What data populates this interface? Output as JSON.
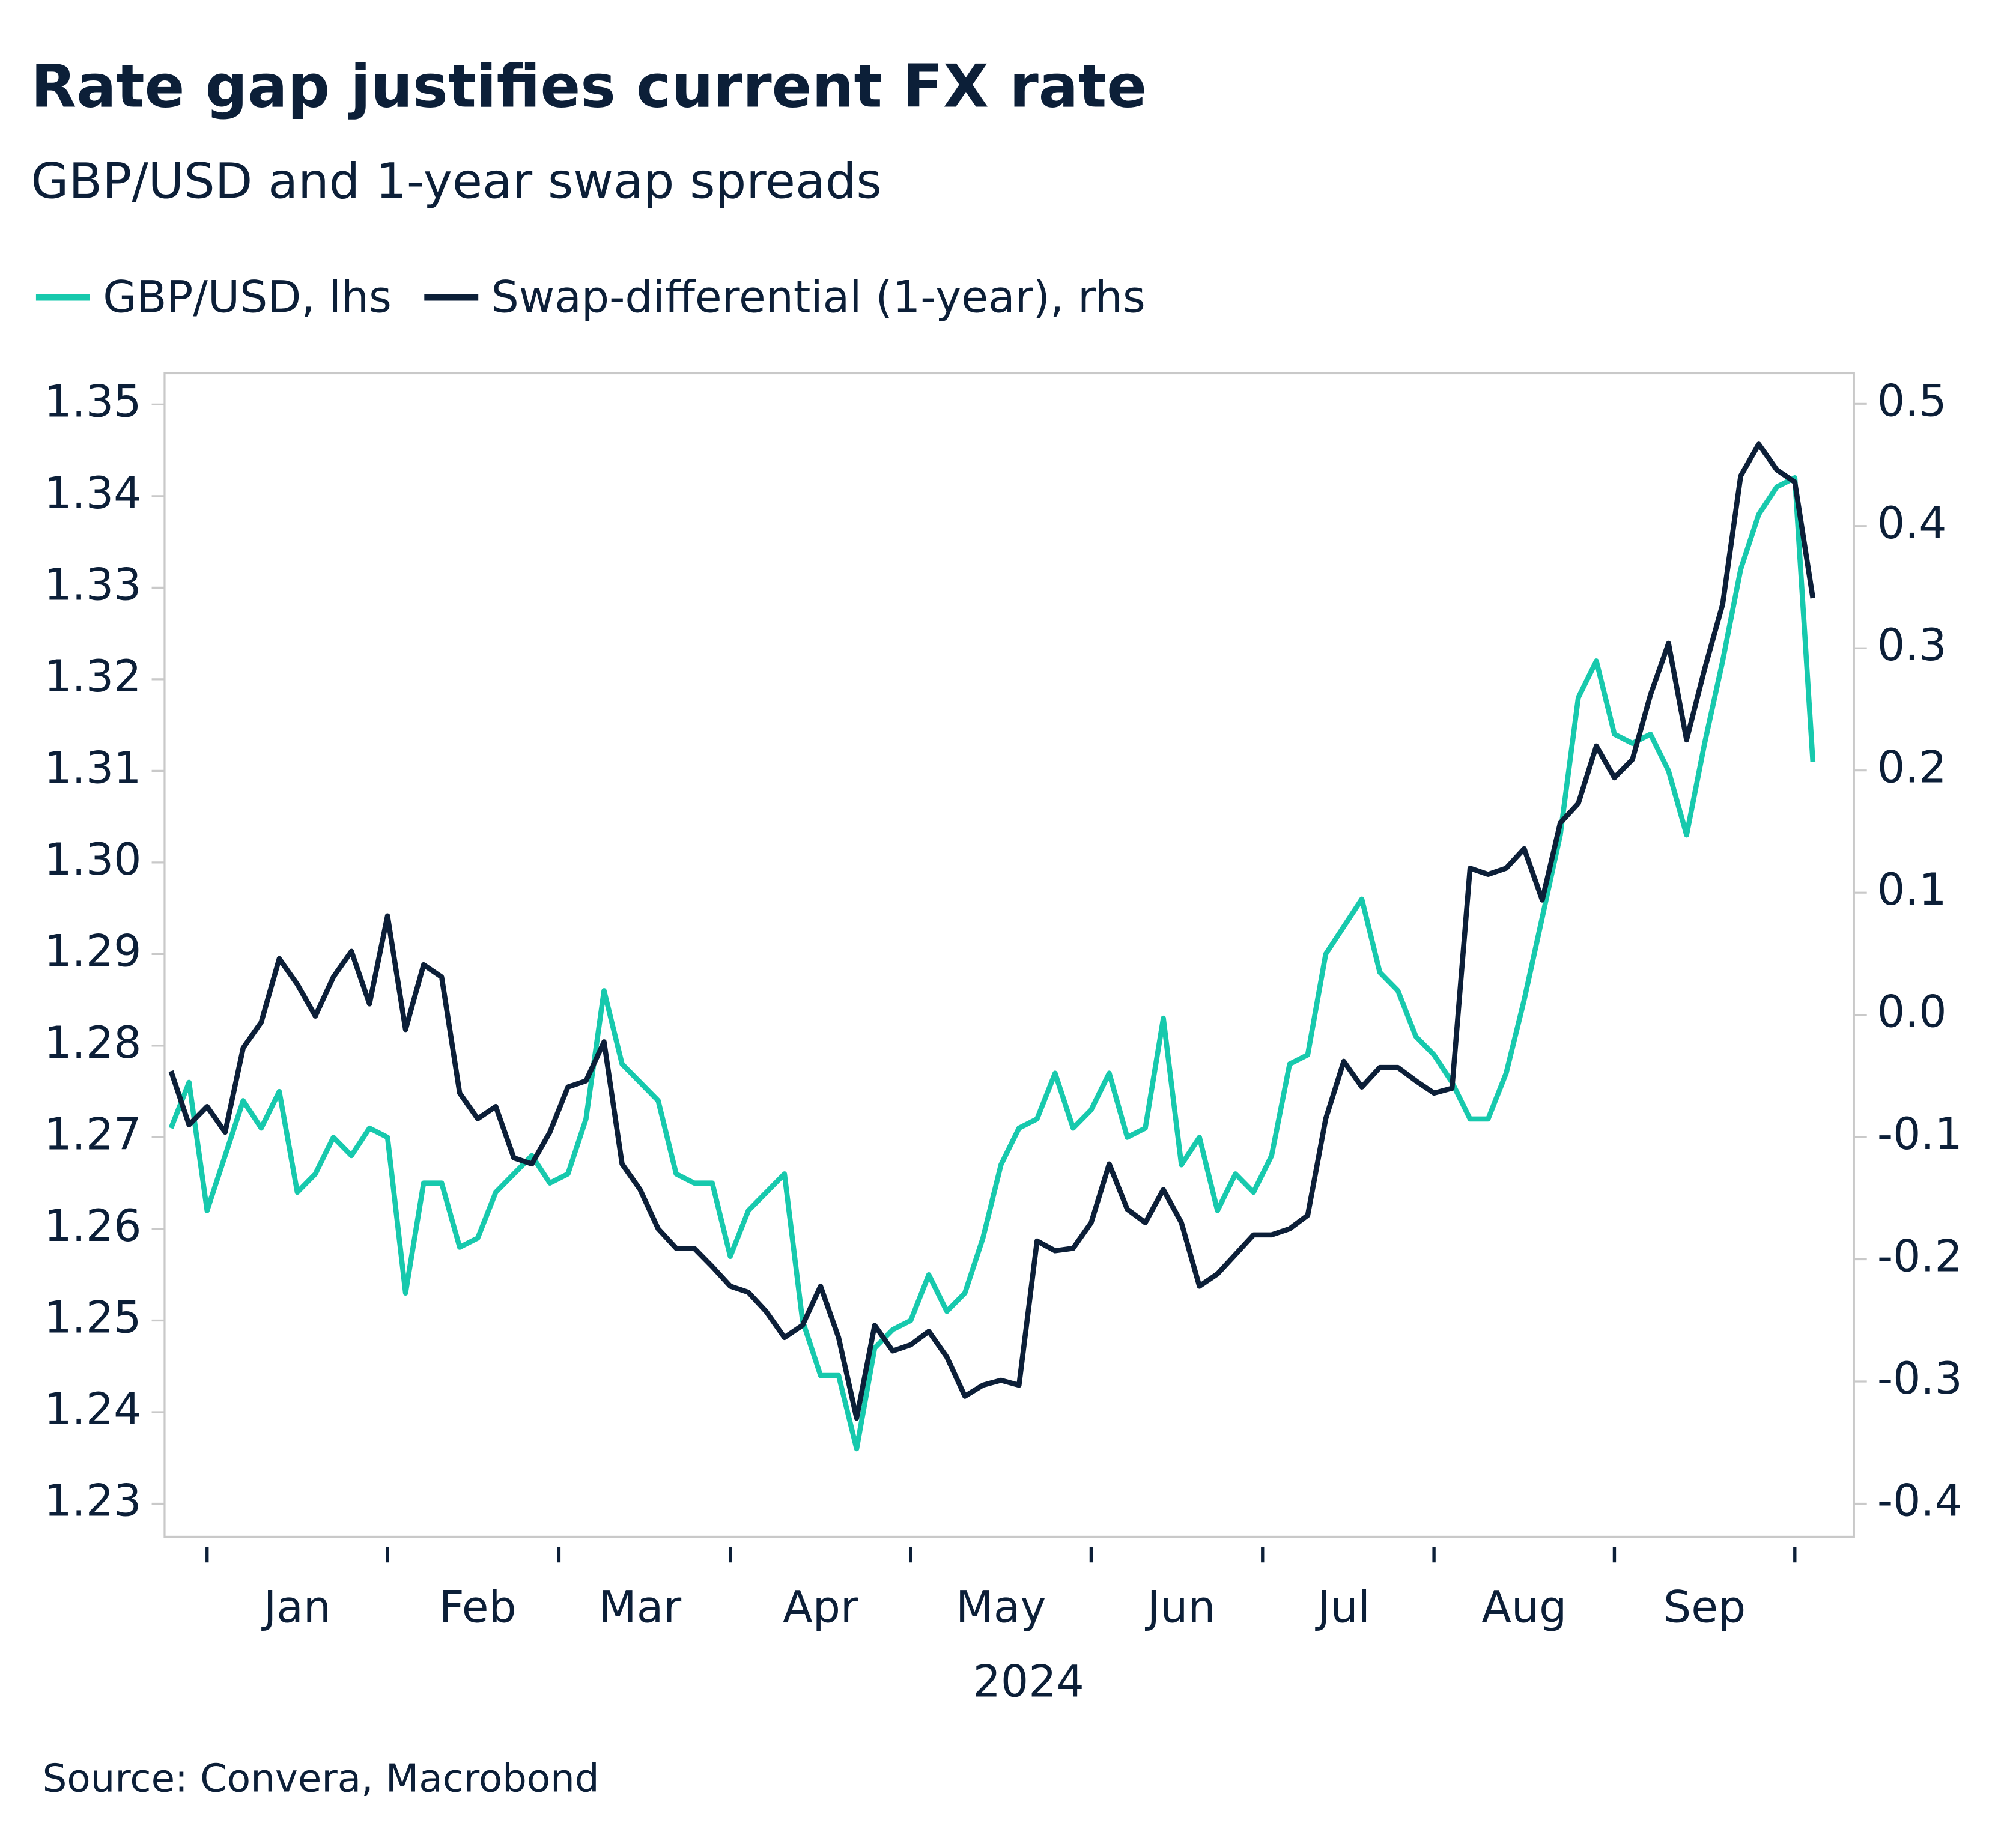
{
  "chart_data": {
    "type": "line",
    "title": "Rate gap justifies current FX rate",
    "subtitle": "GBP/USD and 1-year swap spreads",
    "xlabel": "2024",
    "source": "Source: Convera, Macrobond",
    "categories": [
      null,
      null,
      null,
      null,
      null,
      null,
      null,
      "Jan",
      null,
      null,
      null,
      null,
      null,
      null,
      null,
      null,
      null,
      "Feb",
      null,
      null,
      null,
      null,
      null,
      null,
      null,
      null,
      "Mar",
      null,
      null,
      null,
      null,
      null,
      null,
      null,
      null,
      null,
      "Apr",
      null,
      null,
      null,
      null,
      null,
      null,
      null,
      null,
      null,
      "May",
      null,
      null,
      null,
      null,
      null,
      null,
      null,
      null,
      null,
      "Jun",
      null,
      null,
      null,
      null,
      null,
      null,
      null,
      null,
      "Jul",
      null,
      null,
      null,
      null,
      null,
      null,
      null,
      null,
      null,
      "Aug",
      null,
      null,
      null,
      null,
      null,
      null,
      null,
      null,
      null,
      "Sep",
      null,
      null,
      null,
      null,
      null,
      null
    ],
    "series": [
      {
        "name": "GBP/USD, lhs",
        "color": "#17c9ad",
        "axis": "y",
        "values": [
          1.271,
          1.276,
          1.262,
          1.268,
          1.274,
          1.271,
          1.275,
          1.264,
          1.266,
          1.27,
          1.268,
          1.271,
          1.27,
          1.253,
          1.265,
          1.265,
          1.258,
          1.259,
          1.264,
          1.266,
          1.268,
          1.265,
          1.266,
          1.272,
          1.286,
          1.278,
          1.276,
          1.274,
          1.266,
          1.265,
          1.265,
          1.257,
          1.262,
          1.264,
          1.266,
          1.25,
          1.244,
          1.244,
          1.236,
          1.247,
          1.249,
          1.25,
          1.255,
          1.251,
          1.253,
          1.259,
          1.267,
          1.271,
          1.272,
          1.277,
          1.271,
          1.273,
          1.277,
          1.27,
          1.271,
          1.283,
          1.267,
          1.27,
          1.262,
          1.266,
          1.264,
          1.268,
          1.278,
          1.279,
          1.29,
          1.293,
          1.296,
          1.288,
          1.286,
          1.281,
          1.279,
          1.276,
          1.272,
          1.272,
          1.277,
          1.285,
          1.294,
          1.303,
          1.318,
          1.322,
          1.314,
          1.313,
          1.314,
          1.31,
          1.303,
          1.313,
          1.322,
          1.332,
          1.338,
          1.341,
          1.342,
          1.311
        ]
      },
      {
        "name": "Swap-differential (1-year), rhs",
        "color": "#0c1f38",
        "axis": "y2",
        "values": [
          -0.046,
          -0.09,
          -0.075,
          -0.096,
          -0.027,
          -0.006,
          0.046,
          0.025,
          -0.001,
          0.031,
          0.052,
          0.009,
          0.081,
          -0.012,
          0.041,
          0.031,
          -0.064,
          -0.085,
          -0.075,
          -0.117,
          -0.122,
          -0.096,
          -0.059,
          -0.054,
          -0.022,
          -0.122,
          -0.143,
          -0.175,
          -0.191,
          -0.191,
          -0.206,
          -0.222,
          -0.227,
          -0.243,
          -0.264,
          -0.254,
          -0.222,
          -0.264,
          -0.33,
          -0.254,
          -0.275,
          -0.27,
          -0.259,
          -0.28,
          -0.312,
          -0.303,
          -0.299,
          -0.303,
          -0.185,
          -0.193,
          -0.191,
          -0.17,
          -0.122,
          -0.159,
          -0.17,
          -0.143,
          -0.17,
          -0.222,
          -0.212,
          -0.196,
          -0.18,
          -0.18,
          -0.175,
          -0.164,
          -0.085,
          -0.038,
          -0.059,
          -0.043,
          -0.043,
          -0.054,
          -0.064,
          -0.06,
          0.12,
          0.115,
          0.12,
          0.136,
          0.094,
          0.157,
          0.173,
          0.22,
          0.194,
          0.209,
          0.262,
          0.304,
          0.225,
          0.283,
          0.336,
          0.441,
          0.467,
          0.446,
          0.436,
          0.341
        ]
      }
    ],
    "ylim": [
      1.2264,
      1.3534
    ],
    "yticks": [
      1.23,
      1.24,
      1.25,
      1.26,
      1.27,
      1.28,
      1.29,
      {
        "value": 1.3,
        "label": "1.30"
      },
      1.31,
      1.32,
      1.33,
      1.34,
      1.35
    ],
    "y2lim": [
      -0.427,
      0.525
    ],
    "y2ticks": [
      -0.4,
      -0.3,
      -0.2,
      -0.1,
      {
        "value": 0,
        "label": "0.0"
      },
      0.1,
      0.2,
      0.3,
      0.4,
      0.5
    ],
    "grid": false
  }
}
